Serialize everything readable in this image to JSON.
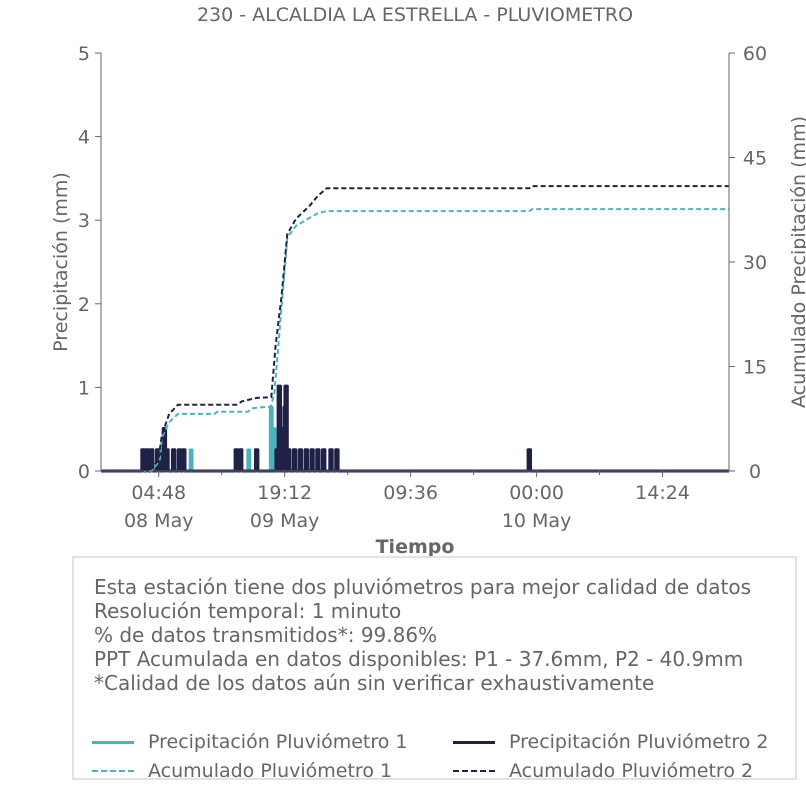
{
  "chart_data": {
    "type": "line",
    "title": "230 - ALCALDIA LA ESTRELLA - PLUVIOMETRO",
    "xlabel": "Tiempo",
    "ylabel_left": "Precipitación (mm)",
    "ylabel_right": "Acumulado Precipitación (mm)",
    "ylim_left": [
      0,
      5
    ],
    "ylim_right": [
      0,
      60
    ],
    "yticks_left": [
      "0",
      "1",
      "2",
      "3",
      "4",
      "5"
    ],
    "yticks_right": [
      "0",
      "15",
      "30",
      "45",
      "60"
    ],
    "xlim": [
      "2024-05-07T22:12",
      "2024-05-10T22:00"
    ],
    "xticks": [
      {
        "t": "2024-05-08T04:48",
        "label": "04:48",
        "date_label": "08 May"
      },
      {
        "t": "2024-05-08T19:12",
        "label": "19:12",
        "date_label": "09 May"
      },
      {
        "t": "2024-05-09T09:36",
        "label": "09:36",
        "date_label": ""
      },
      {
        "t": "2024-05-10T00:00",
        "label": "00:00",
        "date_label": "10 May"
      },
      {
        "t": "2024-05-10T14:24",
        "label": "14:24",
        "date_label": ""
      }
    ],
    "series": [
      {
        "name": "Precipitación Pluviómetro 1",
        "axis": "left",
        "style": "solid",
        "color": "#4cb3bd",
        "points": [
          [
            "2024-05-08T08:30",
            0.254
          ],
          [
            "2024-05-08T15:06",
            0.254
          ],
          [
            "2024-05-08T17:40",
            0.762
          ],
          [
            "2024-05-08T18:00",
            0.508
          ],
          [
            "2024-05-09T23:10",
            0.254
          ]
        ]
      },
      {
        "name": "Precipitación Pluviómetro 2",
        "axis": "left",
        "style": "solid",
        "color": "#1f2147",
        "points": [
          [
            "2024-05-08T03:00",
            0.254
          ],
          [
            "2024-05-08T03:30",
            0.254
          ],
          [
            "2024-05-08T04:00",
            0.254
          ],
          [
            "2024-05-08T04:40",
            0.254
          ],
          [
            "2024-05-08T05:15",
            0.254
          ],
          [
            "2024-05-08T05:27",
            0.508
          ],
          [
            "2024-05-08T05:45",
            0.254
          ],
          [
            "2024-05-08T06:30",
            0.254
          ],
          [
            "2024-05-08T07:10",
            0.254
          ],
          [
            "2024-05-08T07:40",
            0.254
          ],
          [
            "2024-05-08T13:40",
            0.254
          ],
          [
            "2024-05-08T14:10",
            0.254
          ],
          [
            "2024-05-08T16:00",
            0.254
          ],
          [
            "2024-05-08T18:20",
            0.254
          ],
          [
            "2024-05-08T18:35",
            1.016
          ],
          [
            "2024-05-08T18:50",
            0.508
          ],
          [
            "2024-05-08T19:05",
            0.254
          ],
          [
            "2024-05-08T19:15",
            0.762
          ],
          [
            "2024-05-08T19:22",
            1.016
          ],
          [
            "2024-05-08T19:40",
            0.254
          ],
          [
            "2024-05-08T20:20",
            0.254
          ],
          [
            "2024-05-08T21:00",
            0.254
          ],
          [
            "2024-05-08T21:40",
            0.254
          ],
          [
            "2024-05-08T22:20",
            0.254
          ],
          [
            "2024-05-08T23:00",
            0.254
          ],
          [
            "2024-05-08T23:40",
            0.254
          ],
          [
            "2024-05-09T00:30",
            0.254
          ],
          [
            "2024-05-09T01:10",
            0.254
          ],
          [
            "2024-05-09T23:10",
            0.254
          ]
        ]
      },
      {
        "name": "Acumulado Pluviómetro 1",
        "axis": "right",
        "style": "dashed",
        "color": "#4cb3bd",
        "points": [
          [
            "2024-05-07T22:12",
            0
          ],
          [
            "2024-05-08T04:00",
            0
          ],
          [
            "2024-05-08T04:55",
            1.5
          ],
          [
            "2024-05-08T05:10",
            4.8
          ],
          [
            "2024-05-08T06:00",
            7
          ],
          [
            "2024-05-08T07:00",
            8.2
          ],
          [
            "2024-05-08T11:10",
            8.2
          ],
          [
            "2024-05-08T11:30",
            8.5
          ],
          [
            "2024-05-08T15:00",
            8.5
          ],
          [
            "2024-05-08T15:30",
            9
          ],
          [
            "2024-05-08T17:00",
            9.2
          ],
          [
            "2024-05-08T17:35",
            9.2
          ],
          [
            "2024-05-08T18:00",
            11
          ],
          [
            "2024-05-08T18:45",
            22
          ],
          [
            "2024-05-08T19:30",
            33.5
          ],
          [
            "2024-05-08T20:30",
            35.2
          ],
          [
            "2024-05-08T22:00",
            36.3
          ],
          [
            "2024-05-08T23:00",
            37
          ],
          [
            "2024-05-09T00:00",
            37.3
          ],
          [
            "2024-05-09T23:10",
            37.3
          ],
          [
            "2024-05-09T23:30",
            37.6
          ],
          [
            "2024-05-10T22:00",
            37.6
          ]
        ]
      },
      {
        "name": "Acumulado Pluviómetro 2",
        "axis": "right",
        "style": "dashed",
        "color": "#1f2147",
        "points": [
          [
            "2024-05-07T22:12",
            0
          ],
          [
            "2024-05-08T03:00",
            0
          ],
          [
            "2024-05-08T04:00",
            0.5
          ],
          [
            "2024-05-08T04:45",
            1.5
          ],
          [
            "2024-05-08T05:10",
            5.2
          ],
          [
            "2024-05-08T06:00",
            8.2
          ],
          [
            "2024-05-08T07:00",
            9.5
          ],
          [
            "2024-05-08T13:40",
            9.5
          ],
          [
            "2024-05-08T14:20",
            10
          ],
          [
            "2024-05-08T16:00",
            10.5
          ],
          [
            "2024-05-08T17:40",
            10.6
          ],
          [
            "2024-05-08T18:10",
            18
          ],
          [
            "2024-05-08T18:50",
            25
          ],
          [
            "2024-05-08T19:30",
            34
          ],
          [
            "2024-05-08T20:30",
            36.2
          ],
          [
            "2024-05-08T22:00",
            38
          ],
          [
            "2024-05-08T23:00",
            39.5
          ],
          [
            "2024-05-09T00:00",
            40.6
          ],
          [
            "2024-05-09T23:10",
            40.6
          ],
          [
            "2024-05-09T23:30",
            40.9
          ],
          [
            "2024-05-10T22:00",
            40.9
          ]
        ]
      }
    ],
    "grid": false,
    "legend_placement": "bottom"
  },
  "info_lines": [
    "Esta estación tiene dos pluviómetros para mejor calidad de datos",
    "Resolución temporal: 1 minuto",
    "% de datos transmitidos*: 99.86%",
    "PPT Acumulada en datos disponibles: P1 - 37.6mm, P2 - 40.9mm",
    "*Calidad de los datos aún sin verificar exhaustivamente"
  ],
  "colors": {
    "p1": "#4cb3bd",
    "p2": "#1f2147",
    "text": "#666666",
    "axis": "#666666"
  }
}
